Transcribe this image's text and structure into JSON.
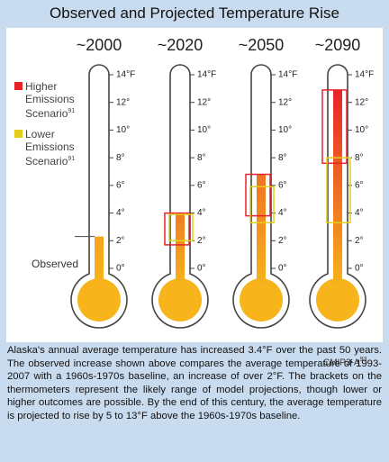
{
  "chart_data": {
    "type": "thermometer",
    "title": "Observed and Projected Temperature Rise",
    "ylim": [
      0,
      14
    ],
    "yticks": [
      {
        "value": 0,
        "label": "0°"
      },
      {
        "value": 2,
        "label": "2°"
      },
      {
        "value": 4,
        "label": "4°"
      },
      {
        "value": 6,
        "label": "6°"
      },
      {
        "value": 8,
        "label": "8°"
      },
      {
        "value": 10,
        "label": "10°"
      },
      {
        "value": 12,
        "label": "12°"
      },
      {
        "value": 14,
        "label": "14°F"
      }
    ],
    "bulb_color": "#f7b41b",
    "thermometers": [
      {
        "name": "~2000",
        "value": 2.3,
        "color": "#f5a31c",
        "higher": null,
        "lower": null
      },
      {
        "name": "~2020",
        "value": 4.0,
        "color": "#ef7d22",
        "higher": [
          1.7,
          4.0
        ],
        "lower": [
          2.0,
          3.9
        ]
      },
      {
        "name": "~2050",
        "value": 6.8,
        "color": "#ef7322",
        "higher": [
          3.8,
          6.8
        ],
        "lower": [
          3.3,
          5.9
        ]
      },
      {
        "name": "~2090",
        "value": 12.9,
        "color": "#e8232a",
        "higher": [
          7.6,
          12.9
        ],
        "lower": [
          3.3,
          8.0
        ]
      }
    ],
    "legend": [
      {
        "name": "Higher Emissions Scenario",
        "note": "91",
        "color": "#e8232a"
      },
      {
        "name": "Lower Emissions Scenario",
        "note": "91",
        "color": "#e2cf1c"
      }
    ],
    "annotation": "Observed",
    "source": "CMIP3-A",
    "source_note": "93",
    "caption": "Alaska's annual average temperature has increased 3.4°F over the past 50 years. The observed increase shown above compares the average temperature of 1993-2007 with a 1960s-1970s baseline, an increase of over 2°F. The brackets on the thermometers represent the likely range of model projections, though lower or higher outcomes are possible. By the end of this century, the average temperature is projected to rise by 5 to 13°F above the 1960s-1970s baseline."
  }
}
